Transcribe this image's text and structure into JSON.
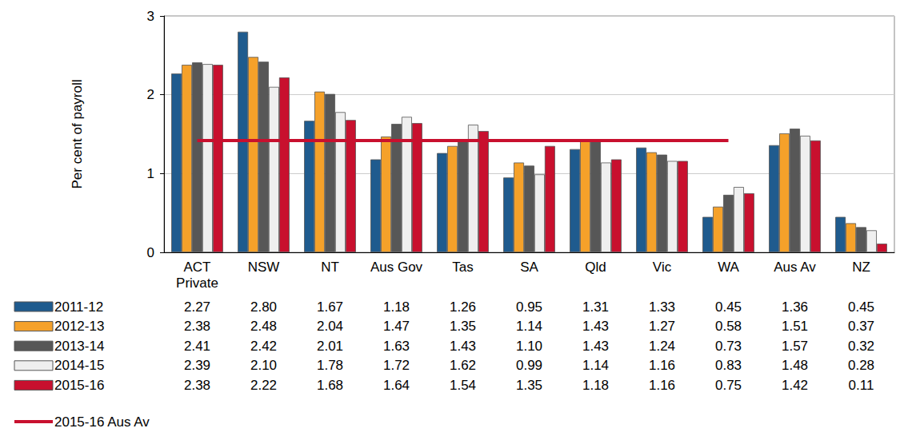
{
  "chart_data": {
    "type": "bar",
    "y_label": "Per cent of payroll",
    "categories": [
      "ACT\nPrivate",
      "NSW",
      "NT",
      "Aus Gov",
      "Tas",
      "SA",
      "Qld",
      "Vic",
      "WA",
      "Aus Av",
      "NZ"
    ],
    "series": [
      {
        "name": "2011-12",
        "color": "#1f5b8e",
        "values": [
          2.27,
          2.8,
          1.67,
          1.18,
          1.26,
          0.95,
          1.31,
          1.33,
          0.45,
          1.36,
          0.45
        ],
        "value_labels": [
          "2.27",
          "2.80",
          "1.67",
          "1.18",
          "1.26",
          "0.95",
          "1.31",
          "1.33",
          "0.45",
          "1.36",
          "0.45"
        ]
      },
      {
        "name": "2012-13",
        "color": "#f5a12a",
        "values": [
          2.38,
          2.48,
          2.04,
          1.47,
          1.35,
          1.14,
          1.43,
          1.27,
          0.58,
          1.51,
          0.37
        ],
        "value_labels": [
          "2.38",
          "2.48",
          "2.04",
          "1.47",
          "1.35",
          "1.14",
          "1.43",
          "1.27",
          "0.58",
          "1.51",
          "0.37"
        ]
      },
      {
        "name": "2013-14",
        "color": "#575757",
        "values": [
          2.41,
          2.42,
          2.01,
          1.63,
          1.43,
          1.1,
          1.43,
          1.24,
          0.73,
          1.57,
          0.32
        ],
        "value_labels": [
          "2.41",
          "2.42",
          "2.01",
          "1.63",
          "1.43",
          "1.10",
          "1.43",
          "1.24",
          "0.73",
          "1.57",
          "0.32"
        ]
      },
      {
        "name": "2014-15",
        "color": "#efefef",
        "values": [
          2.39,
          2.1,
          1.78,
          1.72,
          1.62,
          0.99,
          1.14,
          1.16,
          0.83,
          1.48,
          0.28
        ],
        "value_labels": [
          "2.39",
          "2.10",
          "1.78",
          "1.72",
          "1.62",
          "0.99",
          "1.14",
          "1.16",
          "0.83",
          "1.48",
          "0.28"
        ]
      },
      {
        "name": "2015-16",
        "color": "#c8102e",
        "values": [
          2.38,
          2.22,
          1.68,
          1.64,
          1.54,
          1.35,
          1.18,
          1.16,
          0.75,
          1.42,
          0.11
        ],
        "value_labels": [
          "2.38",
          "2.22",
          "1.68",
          "1.64",
          "1.54",
          "1.35",
          "1.18",
          "1.16",
          "0.75",
          "1.42",
          "0.11"
        ]
      },
      {
        "name": "2015-16 Aus Av",
        "type": "line",
        "color": "#c8102e",
        "values": [
          1.42,
          1.42,
          1.42,
          1.42,
          1.42,
          1.42,
          1.42,
          1.42,
          1.42,
          null,
          null
        ]
      }
    ],
    "ylim": [
      0,
      3
    ],
    "yticks": [
      0,
      1,
      2,
      3
    ],
    "grid": true
  }
}
